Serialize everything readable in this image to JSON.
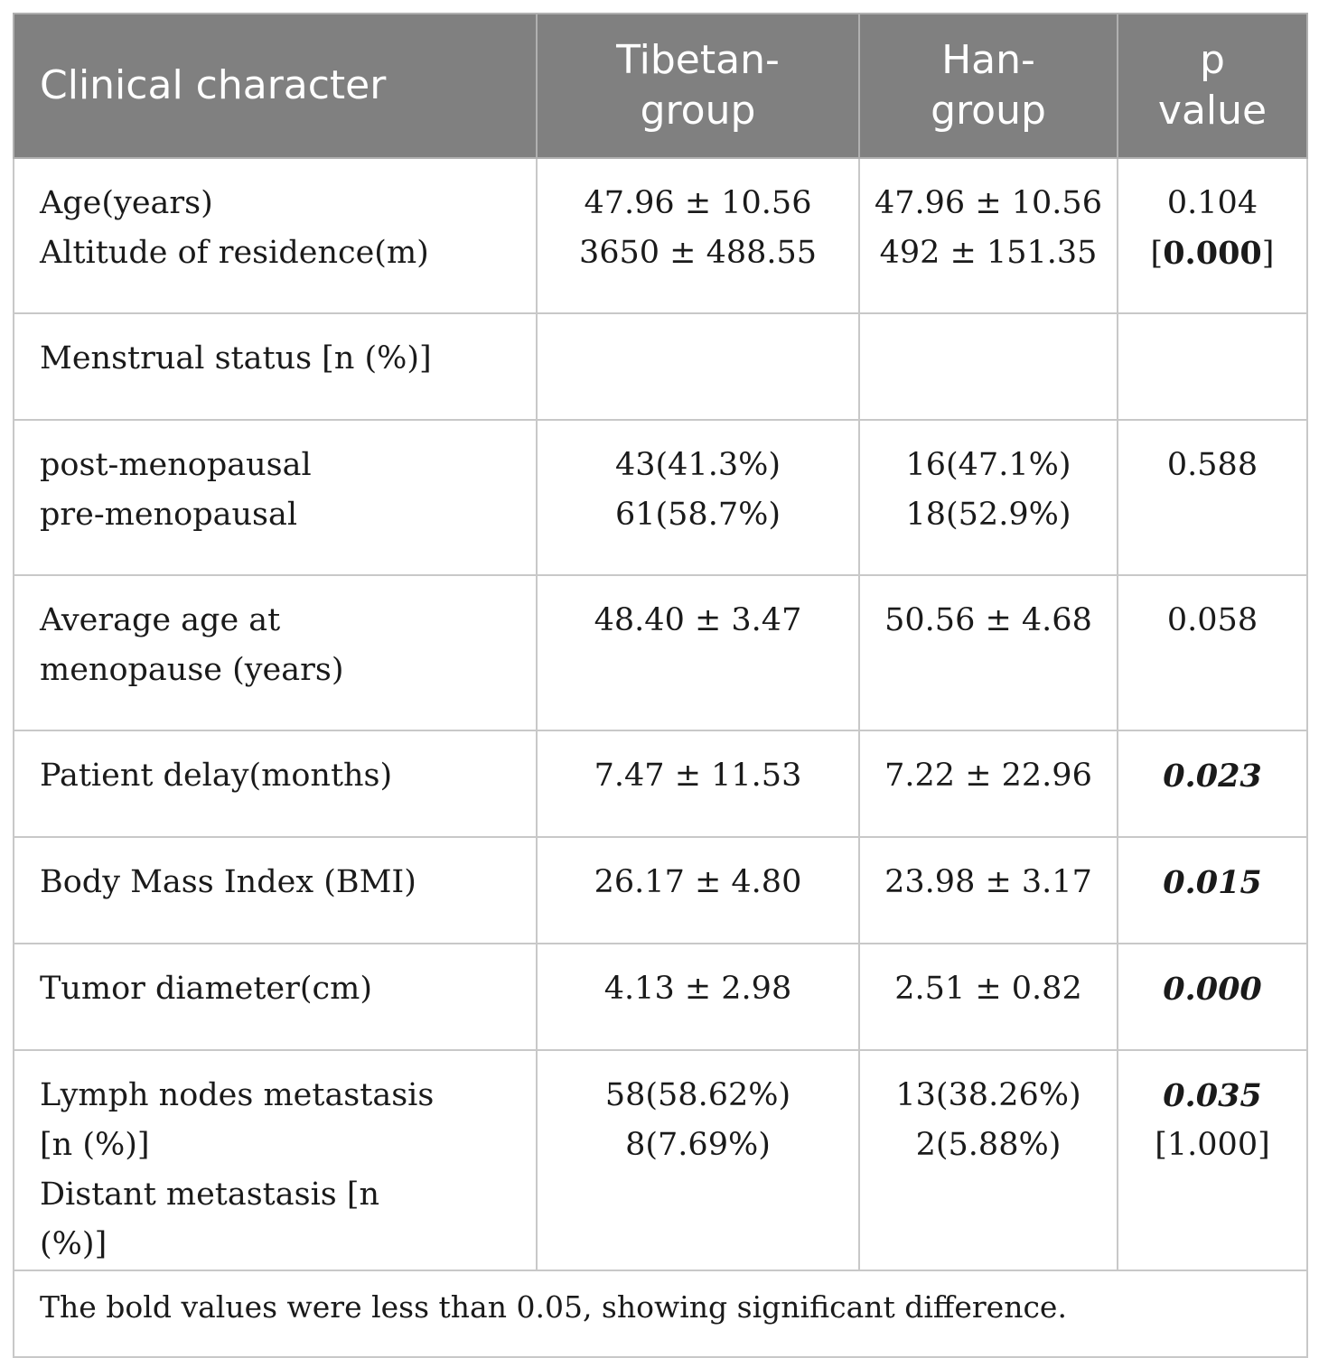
{
  "header": {
    "col1": "Clinical character",
    "col2_line1": "Tibetan-",
    "col2_line2": "group",
    "col3_line1": "Han-",
    "col3_line2": "group",
    "col4_line1": "p",
    "col4_line2": "value"
  },
  "rows": [
    {
      "label": [
        "Age(years)",
        "Altitude of residence(m)"
      ],
      "tibetan": [
        "47.96 ± 10.56",
        "3650 ± 488.55"
      ],
      "han": [
        "47.96 ± 10.56",
        "492 ± 151.35"
      ],
      "p": [
        "0.104",
        "[",
        "0.000",
        "]"
      ]
    },
    {
      "label": [
        "Menstrual status [n (%)]"
      ],
      "tibetan": [],
      "han": [],
      "p": []
    },
    {
      "label": [
        "post-menopausal",
        "pre-menopausal"
      ],
      "tibetan": [
        "43(41.3%)",
        "61(58.7%)"
      ],
      "han": [
        "16(47.1%)",
        "18(52.9%)"
      ],
      "p": [
        "0.588"
      ]
    },
    {
      "label": [
        "Average age at menopause (years)"
      ],
      "tibetan": [
        "48.40 ± 3.47"
      ],
      "han": [
        "50.56 ± 4.68"
      ],
      "p": [
        "0.058"
      ]
    },
    {
      "label": [
        "Patient delay(months)"
      ],
      "tibetan": [
        "7.47 ± 11.53"
      ],
      "han": [
        "7.22 ± 22.96"
      ],
      "p": [
        "0.023"
      ]
    },
    {
      "label": [
        "Body Mass Index (BMI)"
      ],
      "tibetan": [
        "26.17 ± 4.80"
      ],
      "han": [
        "23.98 ± 3.17"
      ],
      "p": [
        "0.015"
      ]
    },
    {
      "label": [
        "Tumor diameter(cm)"
      ],
      "tibetan": [
        "4.13 ± 2.98"
      ],
      "han": [
        "2.51 ± 0.82"
      ],
      "p": [
        "0.000"
      ]
    },
    {
      "label": [
        "Lymph nodes metastasis [n (%)]",
        "Distant metastasis [n (%)]"
      ],
      "tibetan": [
        "58(58.62%)",
        "8(7.69%)"
      ],
      "han": [
        "13(38.26%)",
        "2(5.88%)"
      ],
      "p": [
        "0.035",
        "[1.000]"
      ]
    }
  ],
  "footnote": "The bold values were less than 0.05, showing significant difference.",
  "colors": {
    "header_bg": "#808080",
    "header_text": "#ffffff",
    "grid": "#c8c8c8"
  }
}
